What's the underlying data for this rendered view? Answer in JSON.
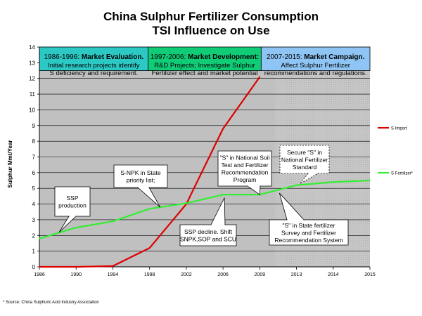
{
  "chart_data": {
    "type": "line",
    "title": "China Sulphur Fertilizer Consumption",
    "subtitle": "TSI Influence on Use",
    "ylabel": "Sulphur Mmt/Year",
    "xlabel": "",
    "ylim": [
      0,
      14
    ],
    "yticks": [
      0,
      1,
      2,
      3,
      4,
      5,
      6,
      7,
      8,
      9,
      10,
      11,
      12,
      13,
      14
    ],
    "categories": [
      "1986",
      "1990",
      "1994",
      "1998",
      "2002",
      "2006",
      "2009",
      "2013",
      "2014",
      "2015"
    ],
    "grid": true,
    "legend": "right",
    "series": [
      {
        "name": "S Import",
        "color": "#dd0000",
        "values": [
          0,
          0,
          0.05,
          1.2,
          4.0,
          8.8,
          12.1,
          null,
          null,
          null
        ]
      },
      {
        "name": "S Fertilizer*",
        "color": "#33ee33",
        "values": [
          1.8,
          2.5,
          2.9,
          3.7,
          4.05,
          4.6,
          4.6,
          5.2,
          5.4,
          5.5
        ]
      }
    ],
    "phases": [
      {
        "years": "1986-1996:",
        "heading": "Market Evaluation.",
        "lines": [
          "Initial research projects identify",
          "S deficiency and requirement."
        ],
        "color": "#2cc9c4"
      },
      {
        "years": "1997-2006:",
        "heading": "Market Development:",
        "lines": [
          "R&D Projects; Investigate Sulphur",
          "Fertilizer effect and market potential"
        ],
        "color": "#11cc77"
      },
      {
        "years": "2007-2015:",
        "heading": "Market Campaign.",
        "lines": [
          "Affect Sulphur Fertilizer",
          "recommendations and regulations."
        ],
        "color": "#8ec5f4"
      }
    ],
    "annotations": [
      {
        "id": "ssp-production",
        "lines": [
          "SSP",
          "production"
        ]
      },
      {
        "id": "snpk-state",
        "lines": [
          "S-NPK in State",
          "priority list;"
        ]
      },
      {
        "id": "ssp-decline",
        "lines": [
          "SSP decline. Shift",
          "SNPK,SOP and SCU"
        ]
      },
      {
        "id": "national-soil-test",
        "lines": [
          "\"S\" in National Soil",
          "Test and Fertilizer",
          "Recommendation",
          "Program"
        ]
      },
      {
        "id": "secure-s",
        "lines": [
          "Secure \"S\" in",
          "National Fertilizer",
          "Standard"
        ]
      },
      {
        "id": "state-fertilizer",
        "lines": [
          "\"S\" in State fertilizer",
          "Survey and Fertilizer",
          "Recommendation System"
        ]
      }
    ]
  },
  "source": "* Source: China Sulphuric Acid Industry Association"
}
